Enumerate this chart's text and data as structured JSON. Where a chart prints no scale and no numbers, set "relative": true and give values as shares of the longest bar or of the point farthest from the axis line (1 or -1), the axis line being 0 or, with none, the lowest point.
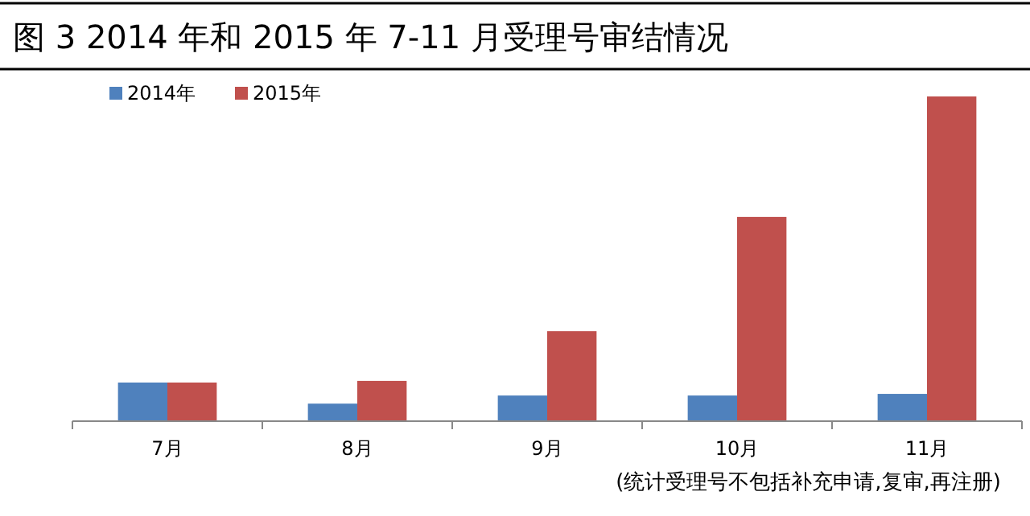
{
  "chart_data": {
    "type": "bar",
    "title": "图 3  2014 年和 2015 年 7-11 月受理号审结情况",
    "relative": true,
    "categories": [
      "7月",
      "8月",
      "9月",
      "10月",
      "11月"
    ],
    "series": [
      {
        "name": "2014年",
        "color": "#4f81bd",
        "values": [
          0.119,
          0.054,
          0.079,
          0.079,
          0.084
        ]
      },
      {
        "name": "2015年",
        "color": "#c0504d",
        "values": [
          0.119,
          0.124,
          0.277,
          0.629,
          1
        ]
      }
    ],
    "legend": "top left",
    "annotations": [
      "(统计受理号不包括补充申请,复审,再注册)"
    ]
  }
}
